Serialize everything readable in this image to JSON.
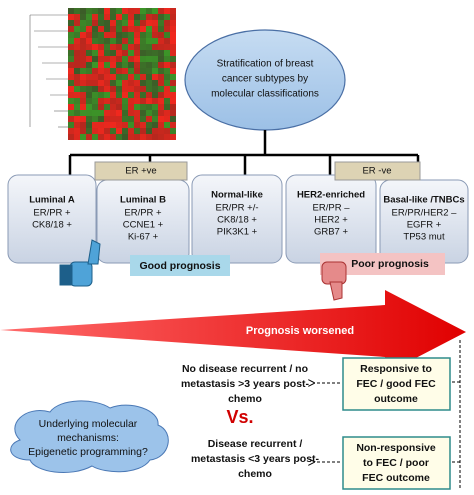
{
  "header": {
    "lines": [
      "Stratification of breast",
      "cancer subtypes by",
      "molecular classifications"
    ]
  },
  "er_labels": [
    "ER +ve",
    "ER -ve"
  ],
  "subtypes": [
    {
      "name": "Luminal A",
      "markers": [
        "ER/PR +",
        "CK8/18 +"
      ]
    },
    {
      "name": "Luminal B",
      "markers": [
        "ER/PR +",
        "CCNE1 +",
        "Ki-67 +"
      ]
    },
    {
      "name": "Normal-like",
      "markers": [
        "ER/PR +/-",
        "CK8/18 +",
        "PIK3K1 +"
      ]
    },
    {
      "name": "HER2-enriched",
      "markers": [
        "ER/PR –",
        "HER2 +",
        "GRB7 +"
      ]
    },
    {
      "name": "Basal-like  /TNBCs",
      "markers": [
        "ER/PR/HER2 –",
        "EGFR +",
        "TP53 mut"
      ]
    }
  ],
  "prognosis": {
    "good": "Good prognosis",
    "poor": "Poor prognosis",
    "arrow": "Prognosis worsened"
  },
  "outcomes": {
    "good": {
      "lines": [
        "No disease recurrent / no",
        "metastasis >3 years post-",
        "chemo"
      ]
    },
    "poor": {
      "lines": [
        "Disease recurrent /",
        "metastasis <3 years post-",
        "chemo"
      ]
    },
    "vs": "Vs."
  },
  "responses": {
    "good": {
      "lines": [
        "Responsive to",
        "FEC / good FEC",
        "outcome"
      ]
    },
    "poor": {
      "lines": [
        "Non-responsive",
        "to FEC / poor",
        "FEC outcome"
      ]
    }
  },
  "cloud": {
    "lines": [
      "Underlying molecular",
      "mechanisms:",
      "Epigenetic programming?"
    ]
  }
}
